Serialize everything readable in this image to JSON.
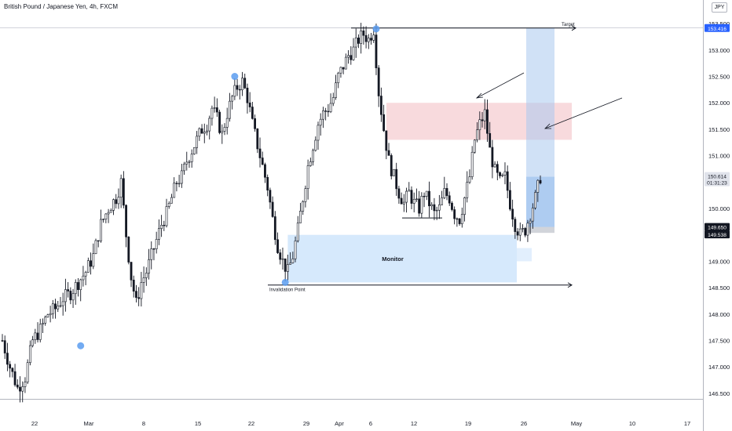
{
  "header": {
    "title": "British Pound / Japanese Yen, 4h, FXCM",
    "currency": "JPY"
  },
  "price_tags": {
    "target": "153.416",
    "last_price": "150.614",
    "countdown": "01:31:23",
    "level_1": "149.650",
    "level_2": "149.538"
  },
  "annotations": {
    "monitor": "Monitor",
    "invalidation": "Invalidation Point",
    "target": "Target"
  },
  "colors": {
    "candle": "#131722",
    "marker": "#5b9cf0",
    "monitor_zone": "#cfe5fb",
    "supply_zone": "#f6cdd2",
    "projection_zone": "#a9c9ee",
    "tag_dark": "#131722",
    "tag_blue": "#2962ff"
  },
  "chart_data": {
    "type": "candlestick",
    "symbol": "GBP/JPY",
    "interval": "4h",
    "y_axis": {
      "ticks": [
        "153.500",
        "153.000",
        "152.500",
        "152.000",
        "151.500",
        "151.000",
        "150.500",
        "150.000",
        "149.500",
        "149.000",
        "148.500",
        "148.000",
        "147.500",
        "147.000",
        "146.500"
      ],
      "range": [
        146.38,
        153.68
      ]
    },
    "x_axis": {
      "ticks": [
        "22",
        "Mar",
        "8",
        "15",
        "22",
        "29",
        "Apr",
        "6",
        "12",
        "19",
        "26",
        "May",
        "10",
        "17"
      ]
    },
    "price_path": [
      [
        0,
        147.5
      ],
      [
        3,
        147.0
      ],
      [
        6,
        146.6
      ],
      [
        9,
        146.8
      ],
      [
        12,
        147.5
      ],
      [
        15,
        147.7
      ],
      [
        18,
        148.0
      ],
      [
        21,
        148.1
      ],
      [
        24,
        148.3
      ],
      [
        27,
        148.4
      ],
      [
        30,
        148.6
      ],
      [
        33,
        148.8
      ],
      [
        36,
        149.1
      ],
      [
        39,
        149.7
      ],
      [
        42,
        150.0
      ],
      [
        45,
        150.2
      ],
      [
        47,
        150.5
      ],
      [
        49,
        149.5
      ],
      [
        51,
        148.7
      ],
      [
        53,
        148.2
      ],
      [
        55,
        148.6
      ],
      [
        57,
        148.8
      ],
      [
        59,
        149.1
      ],
      [
        61,
        149.4
      ],
      [
        63,
        149.7
      ],
      [
        65,
        149.9
      ],
      [
        67,
        150.2
      ],
      [
        69,
        150.5
      ],
      [
        71,
        150.6
      ],
      [
        73,
        150.9
      ],
      [
        75,
        151.1
      ],
      [
        77,
        151.3
      ],
      [
        79,
        151.5
      ],
      [
        81,
        151.6
      ],
      [
        83,
        151.9
      ],
      [
        85,
        151.7
      ],
      [
        87,
        151.4
      ],
      [
        89,
        151.8
      ],
      [
        91,
        152.1
      ],
      [
        93,
        152.3
      ],
      [
        95,
        152.4
      ],
      [
        97,
        152.1
      ],
      [
        99,
        151.6
      ],
      [
        101,
        151.2
      ],
      [
        103,
        150.8
      ],
      [
        105,
        150.4
      ],
      [
        107,
        149.8
      ],
      [
        109,
        149.3
      ],
      [
        111,
        149.0
      ],
      [
        113,
        148.8
      ],
      [
        115,
        149.1
      ],
      [
        117,
        149.6
      ],
      [
        119,
        150.2
      ],
      [
        121,
        150.8
      ],
      [
        123,
        151.2
      ],
      [
        125,
        151.6
      ],
      [
        127,
        151.8
      ],
      [
        129,
        151.9
      ],
      [
        131,
        152.1
      ],
      [
        133,
        152.5
      ],
      [
        135,
        152.7
      ],
      [
        137,
        152.9
      ],
      [
        139,
        153.0
      ],
      [
        141,
        153.2
      ],
      [
        143,
        153.3
      ],
      [
        145,
        153.2
      ],
      [
        147,
        153.4
      ],
      [
        149,
        152.2
      ],
      [
        151,
        151.5
      ],
      [
        153,
        150.9
      ],
      [
        155,
        150.6
      ],
      [
        157,
        150.3
      ],
      [
        159,
        150.1
      ],
      [
        161,
        150.3
      ],
      [
        163,
        150.1
      ],
      [
        165,
        150.0
      ],
      [
        167,
        150.3
      ],
      [
        169,
        150.1
      ],
      [
        171,
        149.9
      ],
      [
        173,
        150.0
      ],
      [
        175,
        150.3
      ],
      [
        177,
        150.2
      ],
      [
        179,
        149.9
      ],
      [
        181,
        149.8
      ],
      [
        183,
        150.2
      ],
      [
        185,
        150.6
      ],
      [
        187,
        151.3
      ],
      [
        189,
        151.6
      ],
      [
        191,
        151.8
      ],
      [
        193,
        151.1
      ],
      [
        195,
        150.7
      ],
      [
        197,
        150.5
      ],
      [
        199,
        150.6
      ],
      [
        201,
        150.1
      ],
      [
        203,
        149.7
      ],
      [
        205,
        149.5
      ],
      [
        207,
        149.6
      ],
      [
        209,
        149.9
      ],
      [
        211,
        150.2
      ],
      [
        213,
        150.6
      ]
    ],
    "markers": [
      {
        "label": "low",
        "index": 31,
        "price": 147.4
      },
      {
        "label": "high",
        "index": 92,
        "price": 152.5
      },
      {
        "label": "low",
        "index": 112,
        "price": 148.6
      },
      {
        "label": "high",
        "index": 148,
        "price": 153.4
      }
    ],
    "zones": [
      {
        "name": "Monitor",
        "from_price": 148.6,
        "to_price": 149.5
      },
      {
        "name": "supply",
        "from_price": 151.3,
        "to_price": 152.0
      }
    ],
    "levels": [
      {
        "name": "Target",
        "price": 153.416
      },
      {
        "name": "Invalidation Point",
        "price": 148.55
      }
    ]
  }
}
